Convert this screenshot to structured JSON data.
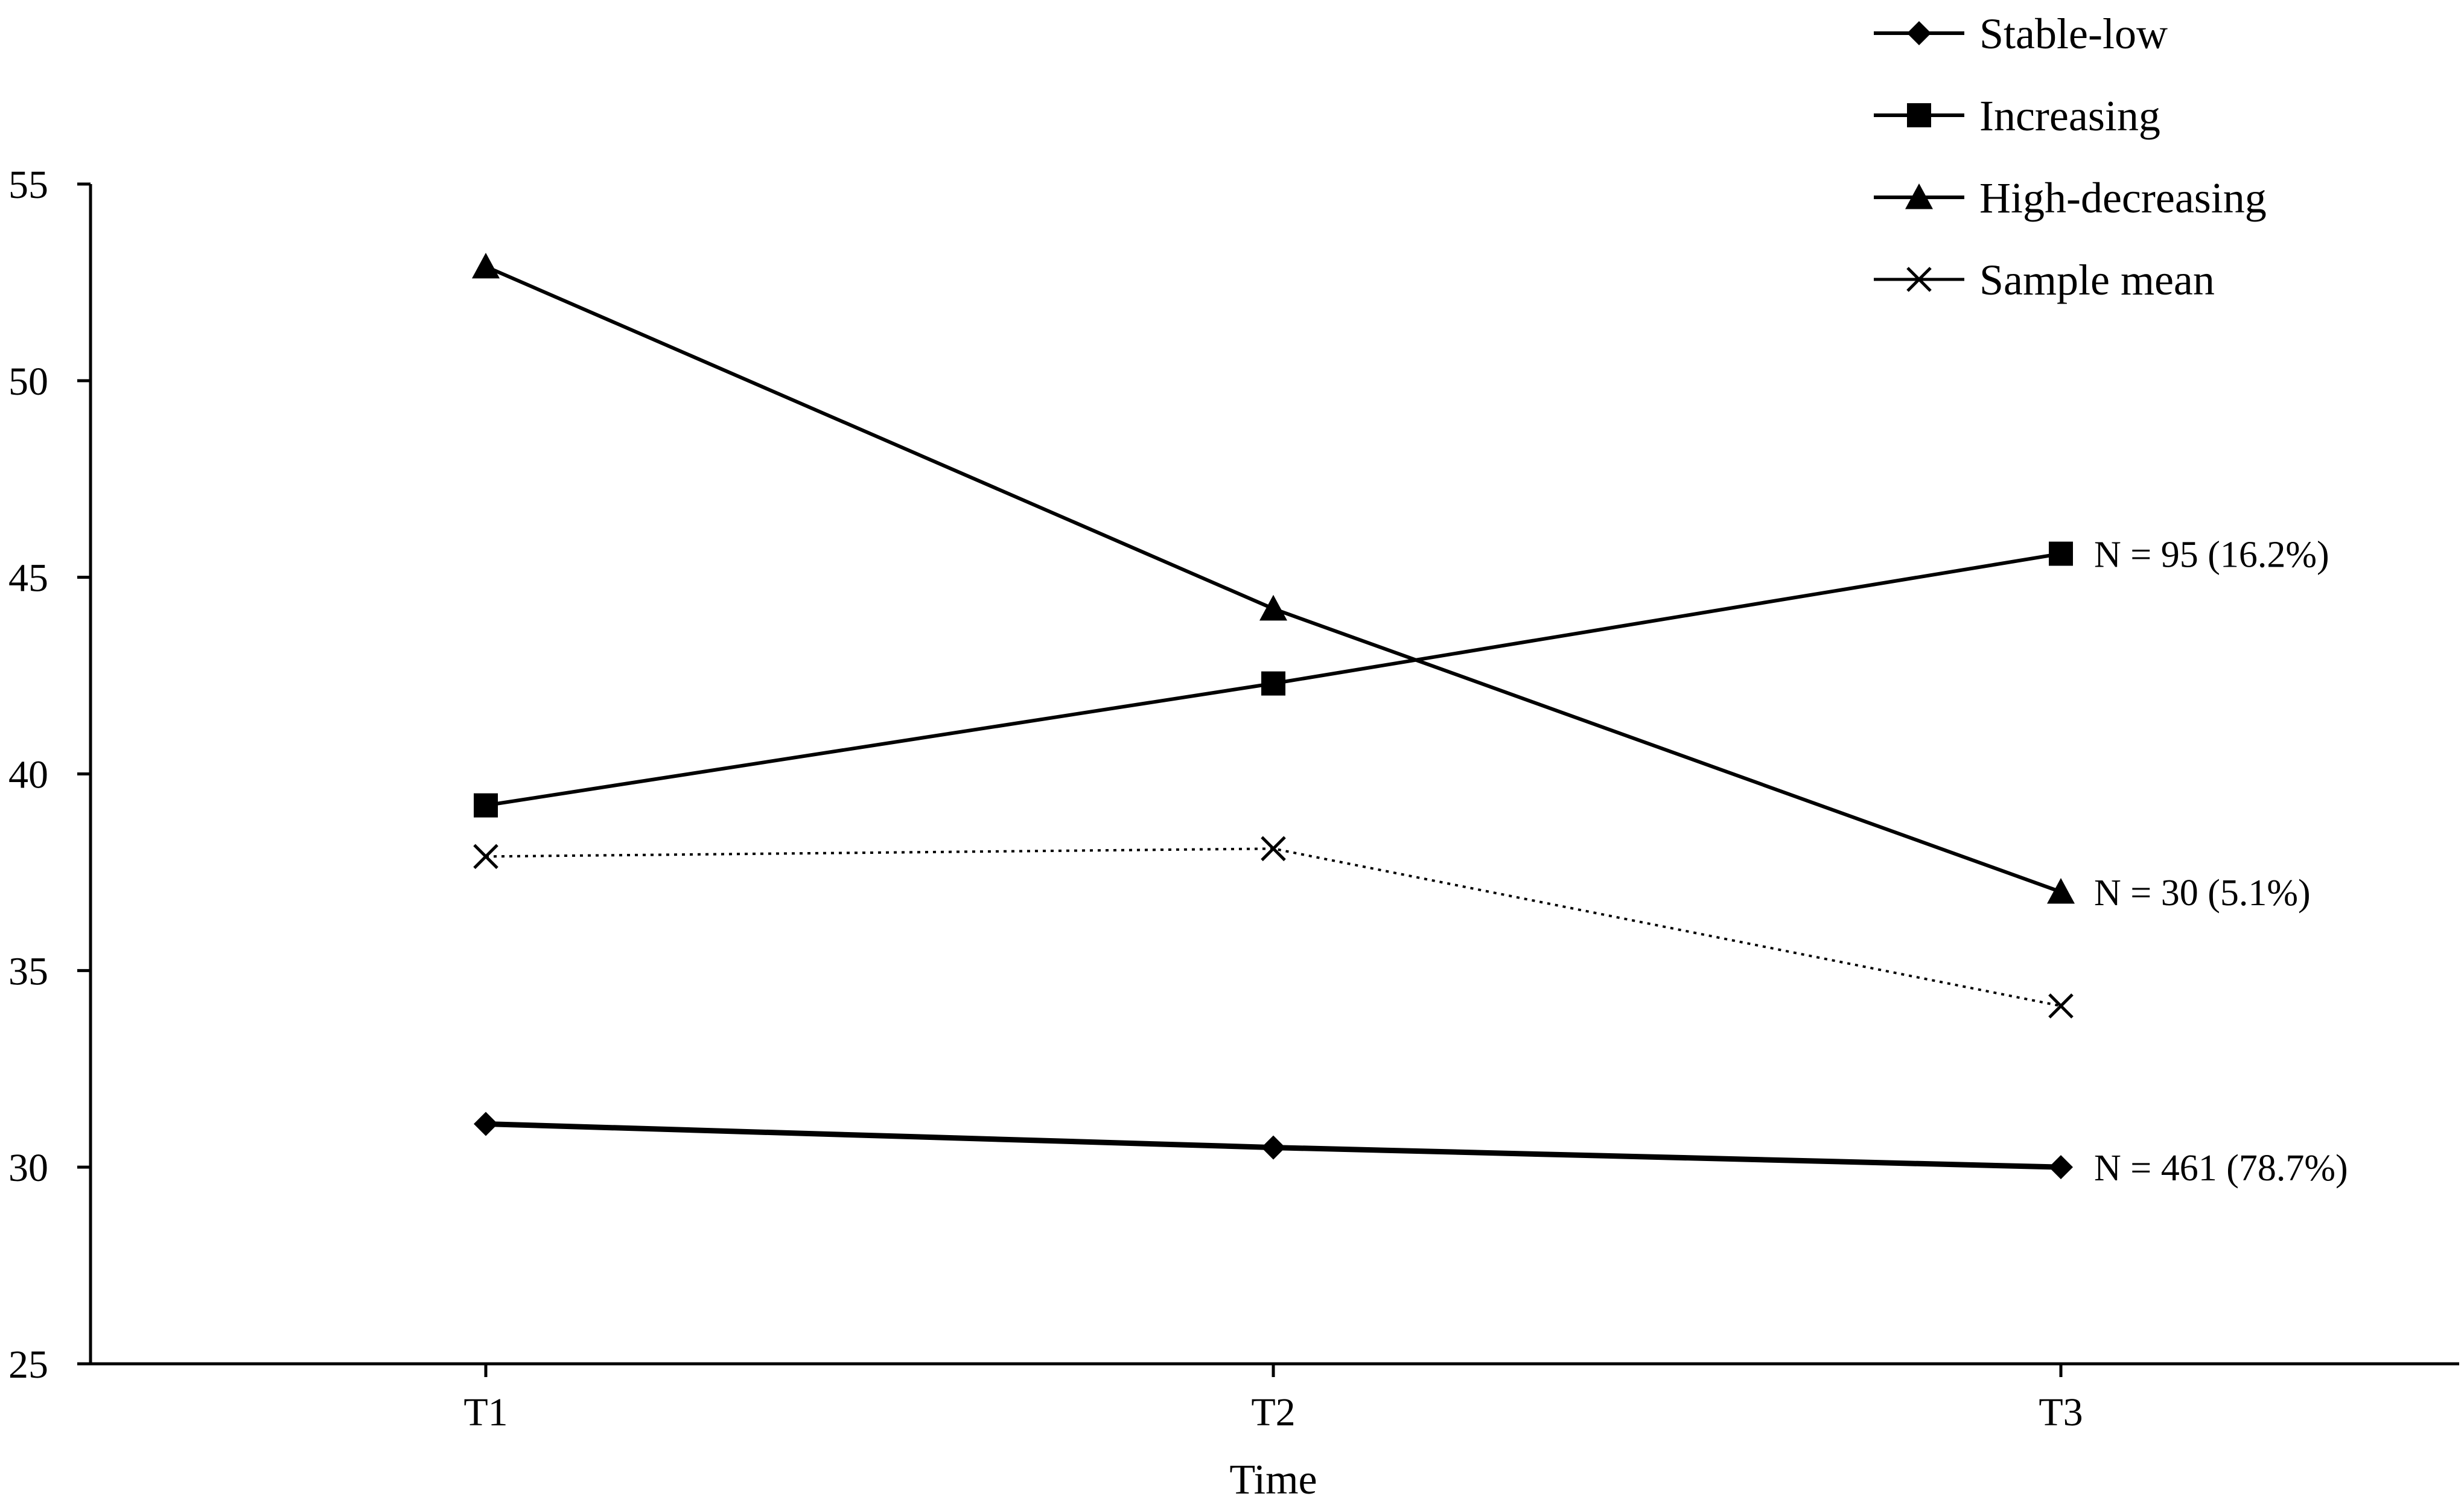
{
  "chart_data": {
    "type": "line",
    "categories": [
      "T1",
      "T2",
      "T3"
    ],
    "xlabel": "Time",
    "ylabel": "",
    "ylim": [
      25,
      55
    ],
    "yticks": [
      25,
      30,
      35,
      40,
      45,
      50,
      55
    ],
    "grid": false,
    "legend": {
      "placement": "top-right"
    },
    "series": [
      {
        "name": "Stable-low",
        "values": [
          31.1,
          30.5,
          30.0
        ],
        "marker": "diamond",
        "line": "solid",
        "color": "#000000",
        "end_label": "N = 461 (78.7%)"
      },
      {
        "name": "Increasing",
        "values": [
          39.2,
          42.3,
          45.6
        ],
        "marker": "square",
        "line": "solid",
        "color": "#000000",
        "end_label": "N = 95 (16.2%)"
      },
      {
        "name": "High-decreasing",
        "values": [
          52.9,
          44.2,
          37.0
        ],
        "marker": "triangle",
        "line": "solid",
        "color": "#000000",
        "end_label": "N = 30 (5.1%)"
      },
      {
        "name": "Sample mean",
        "values": [
          37.9,
          38.1,
          34.1
        ],
        "marker": "x",
        "line": "dotted",
        "color": "#000000",
        "end_label": ""
      }
    ]
  }
}
